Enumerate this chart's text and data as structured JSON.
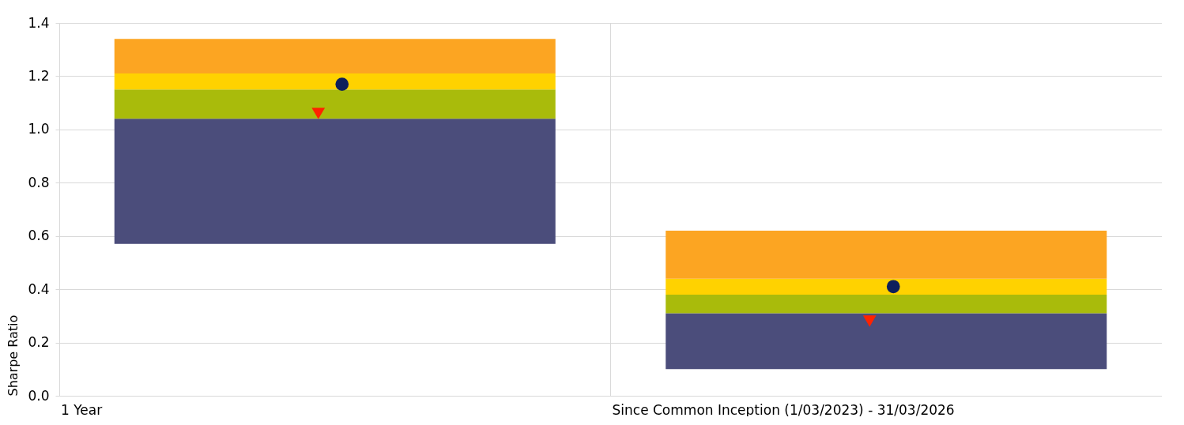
{
  "chart_data": {
    "type": "bar",
    "stacked": true,
    "ylabel": "Sharpe Ratio",
    "categories": [
      "1 Year",
      "Since Common Inception (1/03/2023) - 31/03/2026"
    ],
    "series": [
      {
        "color": "#4b4d7b",
        "base": [
          0.57,
          0.1
        ],
        "values": [
          0.47,
          0.21
        ]
      },
      {
        "color": "#a9bb0b",
        "values": [
          0.11,
          0.07
        ]
      },
      {
        "color": "#ffd200",
        "values": [
          0.06,
          0.06
        ]
      },
      {
        "color": "#fca522",
        "values": [
          0.13,
          0.18
        ]
      },
      {
        "type": "scatter",
        "marker": "triangle",
        "color": "#ff2200",
        "values": [
          1.06,
          0.28
        ]
      },
      {
        "type": "scatter",
        "marker": "circle",
        "color": "#0d1f5c",
        "values": [
          1.17,
          0.41
        ]
      }
    ],
    "ylim": [
      0,
      1.4
    ],
    "yticks": [
      {
        "value": 0,
        "label": "0.0"
      },
      0.2,
      0.4,
      0.6,
      0.8,
      {
        "value": 1,
        "label": "1.0"
      },
      1.2,
      1.4
    ],
    "grid": true
  }
}
